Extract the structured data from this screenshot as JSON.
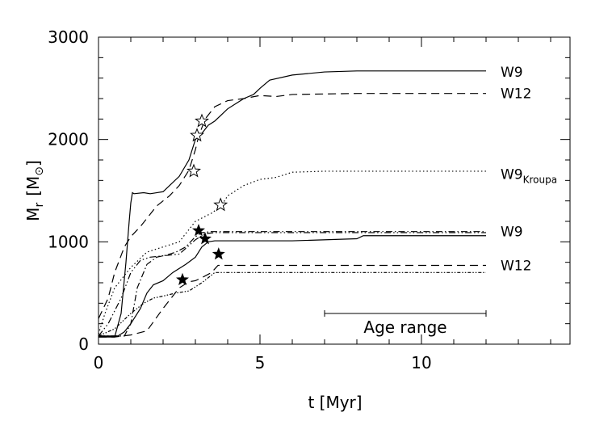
{
  "chart_data": {
    "type": "line",
    "xlabel": "t [Myr]",
    "ylabel_main": "M",
    "ylabel_sub": "r",
    "ylabel_unit_open": "[M",
    "ylabel_unit_close": "]",
    "xlim": [
      0,
      14.6
    ],
    "ylim": [
      0,
      3000
    ],
    "xticks": [
      0,
      5,
      10
    ],
    "yticks": [
      0,
      1000,
      2000,
      3000
    ],
    "xtick_labels": [
      "0",
      "5",
      "10"
    ],
    "ytick_labels": [
      "0",
      "1000",
      "2000",
      "3000"
    ],
    "x_minor_step": 1,
    "y_minor_step": 200,
    "grid": false,
    "age_range": {
      "label": "Age range",
      "x": [
        7,
        12
      ],
      "y": 300
    },
    "series": [
      {
        "name": "W9",
        "group": "upper",
        "style": "solid",
        "label_main": "W9",
        "x": [
          0,
          0.5,
          0.7,
          0.85,
          0.9,
          0.95,
          1.0,
          1.05,
          1.1,
          1.4,
          1.6,
          1.8,
          2.0,
          2.5,
          2.8,
          3.0,
          3.1,
          3.2,
          3.4,
          3.6,
          3.8,
          4.0,
          4.5,
          4.8,
          5.0,
          5.3,
          6.0,
          7.0,
          8.0,
          9.0,
          12.0
        ],
        "y": [
          70,
          70,
          300,
          800,
          1000,
          1200,
          1380,
          1480,
          1470,
          1480,
          1470,
          1480,
          1490,
          1640,
          1800,
          2000,
          2030,
          2060,
          2140,
          2180,
          2240,
          2300,
          2400,
          2440,
          2500,
          2580,
          2630,
          2660,
          2670,
          2670,
          2670
        ]
      },
      {
        "name": "W12",
        "group": "upper",
        "style": "dashed",
        "label_main": "W12",
        "x": [
          0,
          0.3,
          0.5,
          0.8,
          1.0,
          1.3,
          1.8,
          2.2,
          2.5,
          2.8,
          3.0,
          3.1,
          3.3,
          3.6,
          4.0,
          4.5,
          5.0,
          5.5,
          6.0,
          8.0,
          12.0
        ],
        "y": [
          250,
          450,
          700,
          950,
          1050,
          1150,
          1350,
          1450,
          1550,
          1700,
          1900,
          2030,
          2200,
          2320,
          2380,
          2400,
          2430,
          2420,
          2440,
          2450,
          2450
        ]
      },
      {
        "name": "W9Kroupa",
        "group": "upper",
        "style": "dotted",
        "label_main": "W9",
        "label_sub": "Kroupa",
        "x": [
          0,
          0.2,
          0.5,
          1.0,
          1.5,
          2.0,
          2.5,
          3.0,
          3.5,
          3.8,
          4.0,
          4.5,
          5.0,
          5.5,
          6.0,
          7.0,
          12.0
        ],
        "y": [
          100,
          300,
          550,
          750,
          900,
          950,
          1000,
          1200,
          1280,
          1350,
          1450,
          1550,
          1610,
          1630,
          1680,
          1690,
          1690
        ]
      },
      {
        "name": "W9",
        "group": "lower",
        "style": "solid",
        "label_main": "W9",
        "x": [
          0,
          0.6,
          0.8,
          1.0,
          1.3,
          1.5,
          1.7,
          2.0,
          2.3,
          2.7,
          3.0,
          3.2,
          3.4,
          3.6,
          4.0,
          6.0,
          8.0,
          8.2,
          12.0
        ],
        "y": [
          80,
          80,
          120,
          200,
          350,
          500,
          580,
          620,
          700,
          780,
          850,
          950,
          1000,
          1010,
          1010,
          1010,
          1030,
          1060,
          1060
        ]
      },
      {
        "name": "W12",
        "group": "lower",
        "style": "dashed",
        "label_main": "W12",
        "x": [
          0,
          0.5,
          1.0,
          1.5,
          2.0,
          2.5,
          2.8,
          3.0,
          3.2,
          3.5,
          3.7,
          4.0,
          12.0
        ],
        "y": [
          70,
          70,
          90,
          130,
          350,
          550,
          610,
          620,
          650,
          700,
          770,
          770,
          770
        ]
      },
      {
        "name": "W9",
        "group": "lower",
        "style": "dashdot",
        "label_main": "",
        "x": [
          0,
          0.8,
          1.0,
          1.2,
          1.5,
          1.8,
          2.1,
          2.4,
          2.7,
          3.0,
          3.2,
          3.5,
          12.0
        ],
        "y": [
          80,
          80,
          200,
          550,
          780,
          850,
          870,
          900,
          950,
          1050,
          1090,
          1100,
          1100
        ]
      },
      {
        "name": "W12",
        "group": "lower",
        "style": "dashdotdot",
        "label_main": "",
        "x": [
          0,
          0.3,
          0.7,
          1.0,
          1.3,
          1.6,
          1.9,
          2.2,
          2.5,
          3.0,
          3.3,
          3.6,
          12.0
        ],
        "y": [
          80,
          200,
          450,
          700,
          820,
          850,
          860,
          870,
          880,
          1020,
          1080,
          1090,
          1090
        ]
      },
      {
        "name": "W9",
        "group": "lower",
        "style": "dashdotdot-dense",
        "label_main": "",
        "x": [
          0,
          0.5,
          1.0,
          1.4,
          1.7,
          2.0,
          2.4,
          2.8,
          3.2,
          3.6,
          12.0
        ],
        "y": [
          80,
          150,
          300,
          400,
          450,
          470,
          500,
          520,
          600,
          700,
          700
        ]
      }
    ],
    "markers_open": [
      {
        "x": 3.05,
        "y": 2040
      },
      {
        "x": 3.2,
        "y": 2180
      },
      {
        "x": 2.95,
        "y": 1690
      },
      {
        "x": 3.78,
        "y": 1360
      }
    ],
    "markers_filled": [
      {
        "x": 3.1,
        "y": 1110
      },
      {
        "x": 3.3,
        "y": 1030
      },
      {
        "x": 3.72,
        "y": 880
      },
      {
        "x": 2.6,
        "y": 630
      }
    ],
    "line_labels": [
      {
        "main": "W9",
        "sub": "",
        "y": 2660
      },
      {
        "main": "W12",
        "sub": "",
        "y": 2450
      },
      {
        "main": "W9",
        "sub": "Kroupa",
        "y": 1660
      },
      {
        "main": "W9",
        "sub": "",
        "y": 1100
      },
      {
        "main": "W12",
        "sub": "",
        "y": 770
      }
    ]
  }
}
